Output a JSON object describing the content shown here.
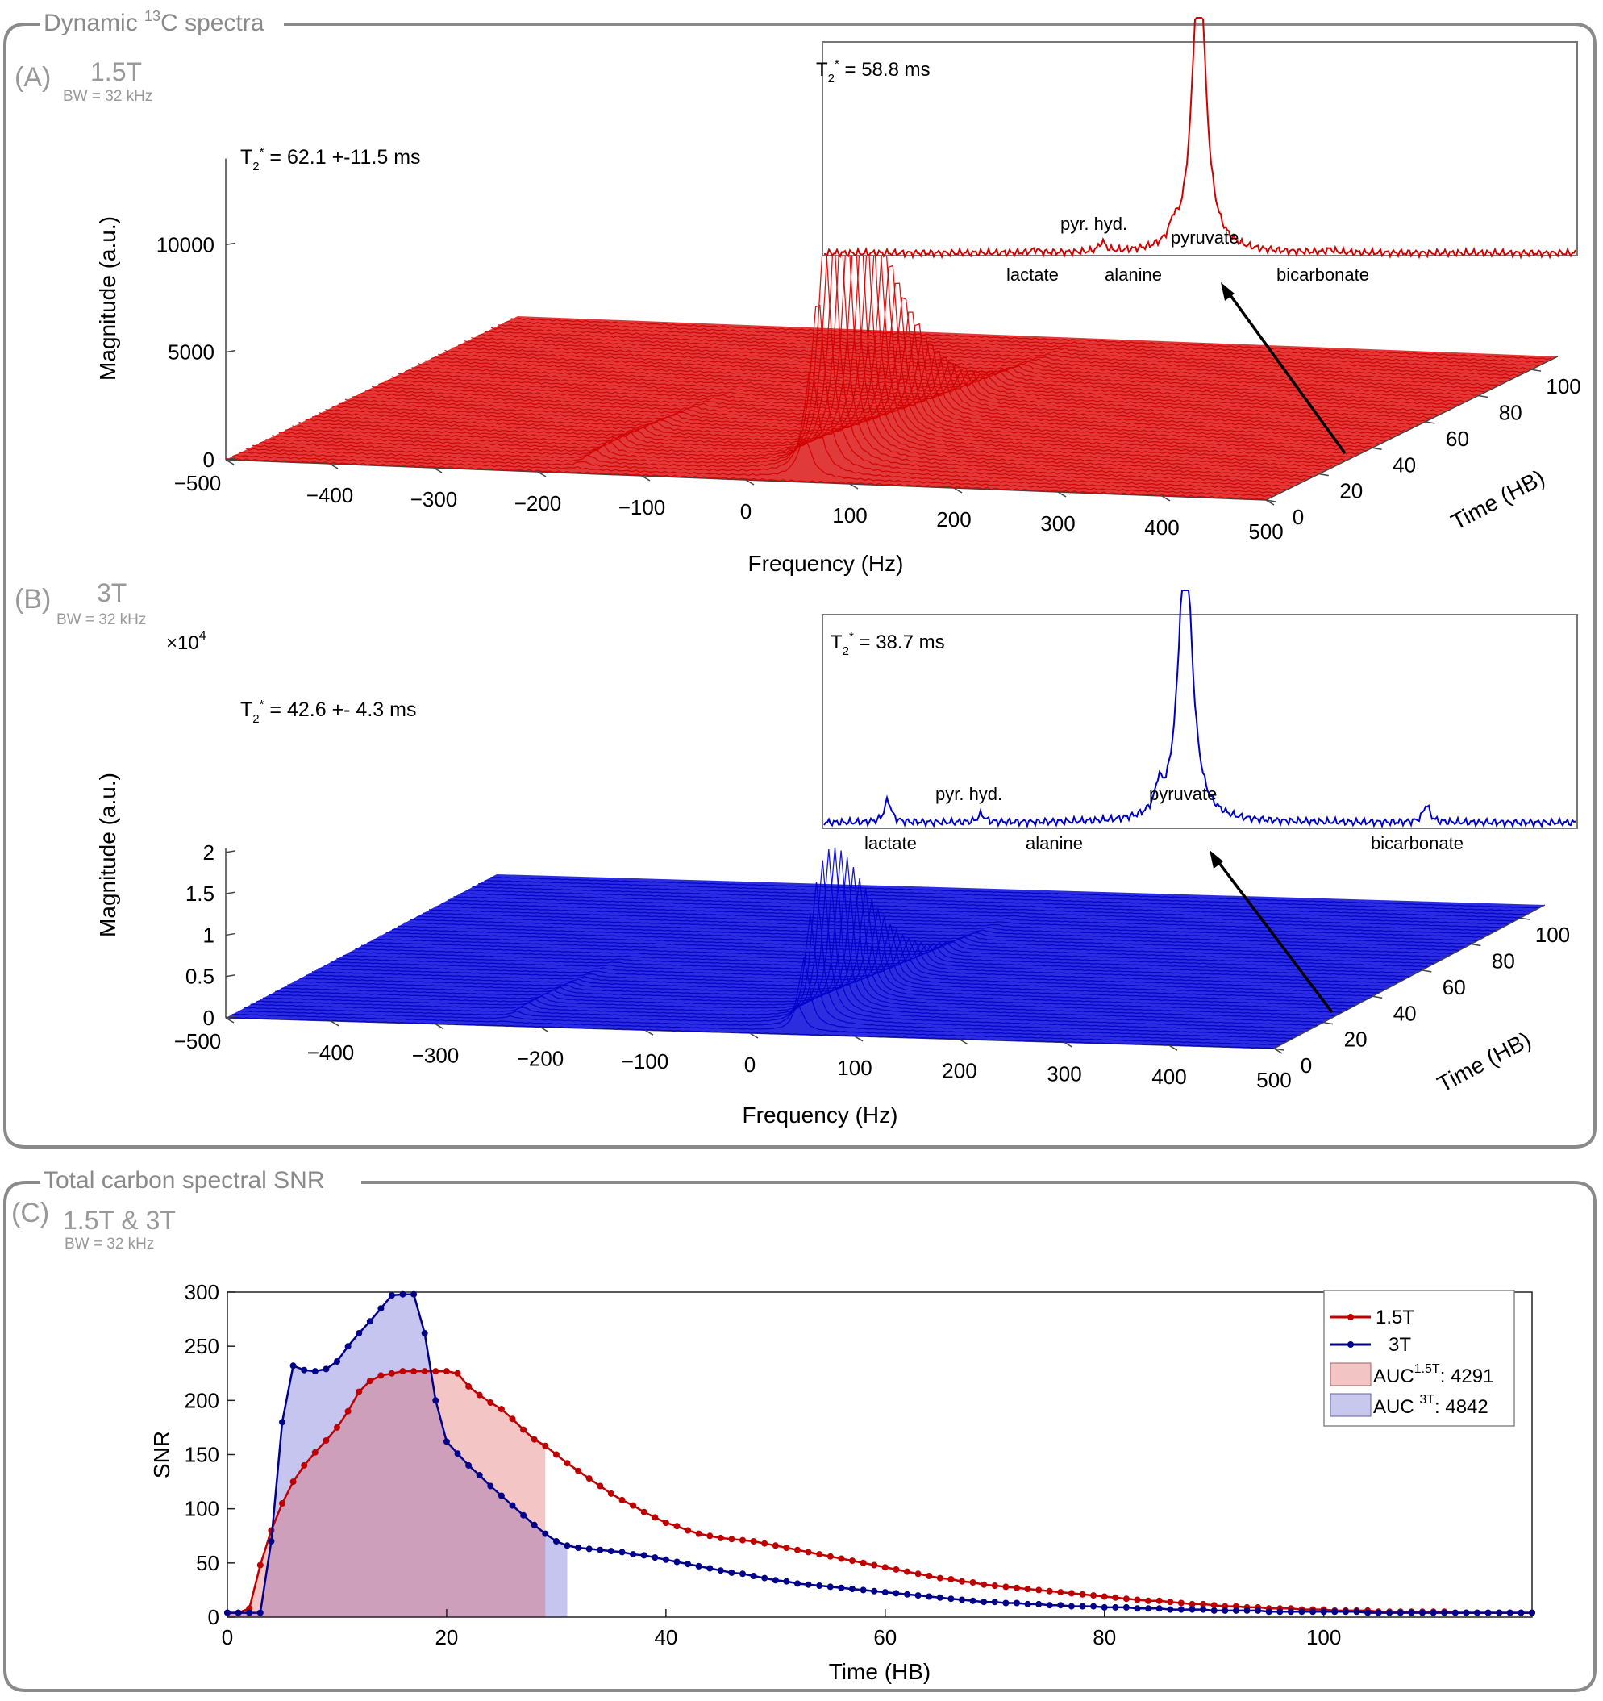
{
  "panel_top": {
    "group_title": "Dynamic ",
    "group_title_sup": "13",
    "group_title_rest": "C spectra"
  },
  "panel_a": {
    "letter": "(A)",
    "field": "1.5T",
    "bw": "BW = 32 kHz",
    "t2_label": "T",
    "t2_sub": "2",
    "t2_sup": "*",
    "t2_value": " = 62.1 +-11.5 ms",
    "inset_t2_value": " = 58.8 ms",
    "color": "#d40000"
  },
  "panel_b": {
    "letter": "(B)",
    "field": "3T",
    "bw": "BW = 32 kHz",
    "multiplier": "×10",
    "multiplier_exp": "4",
    "t2_label": "T",
    "t2_sub": "2",
    "t2_sup": "*",
    "t2_value": " = 42.6 +- 4.3 ms",
    "inset_t2_value": " = 38.7 ms",
    "color": "#0000cc"
  },
  "panel_c": {
    "group_title": "Total carbon spectral SNR",
    "letter": "(C)",
    "field": "1.5T & 3T",
    "bw": "BW = 32 kHz",
    "legend": {
      "s1": "1.5T",
      "s2": "3T",
      "auc1_a": "AUC",
      "auc1_sup": "1.5T",
      "auc1_b": ": 4291",
      "auc2_a": "AUC ",
      "auc2_sup": "3T",
      "auc2_b": ": 4842"
    }
  },
  "inset_labels": {
    "lactate": "lactate",
    "pyr_hyd": "pyr. hyd.",
    "alanine": "alanine",
    "pyruvate": "pyruvate",
    "bicarbonate": "bicarbonate"
  },
  "axes_3d": {
    "xlabel": "Frequency (Hz)",
    "ylabel": "Magnitude (a.u.)",
    "tlabel": "Time (HB)",
    "freq_ticks": [
      "−500",
      "−400",
      "−300",
      "−200",
      "−100",
      "0",
      "100",
      "200",
      "300",
      "400",
      "500"
    ],
    "time_ticks": [
      "0",
      "20",
      "40",
      "60",
      "80",
      "100"
    ],
    "mag_ticks_a": [
      "0",
      "5000",
      "10000"
    ],
    "mag_ticks_b": [
      "0",
      "0.5",
      "1",
      "1.5",
      "2"
    ]
  },
  "chart_data": [
    {
      "type": "area",
      "id": "spectra_1.5T",
      "title": "",
      "xlabel": "Frequency (Hz)",
      "ylabel": "Magnitude (a.u.)",
      "zlabel": "Time (HB)",
      "xlim": [
        -500,
        500
      ],
      "ylim": [
        0,
        14000
      ],
      "zlim": [
        0,
        110
      ],
      "y_ticks": [
        0,
        5000,
        10000
      ],
      "peak_frequency_hz": 50,
      "peak_magnitude_max": 13800,
      "annotation": "T2* = 62.1 +-11.5 ms",
      "inset_annotation": "T2* = 58.8 ms",
      "inset_labels": [
        "lactate",
        "pyr. hyd.",
        "alanine",
        "pyruvate",
        "bicarbonate"
      ]
    },
    {
      "type": "area",
      "id": "spectra_3T",
      "title": "",
      "xlabel": "Frequency (Hz)",
      "ylabel": "Magnitude (a.u.)",
      "zlabel": "Time (HB)",
      "xlim": [
        -500,
        500
      ],
      "ylim": [
        0,
        20500
      ],
      "zlim": [
        0,
        110
      ],
      "y_ticks": [
        0,
        0.5,
        1,
        1.5,
        2
      ],
      "y_multiplier": "×10^4",
      "peak_frequency_hz": 40,
      "peak_magnitude_max": 20000,
      "annotation": "T2* = 42.6 +- 4.3 ms",
      "inset_annotation": "T2* = 38.7 ms",
      "inset_labels": [
        "lactate",
        "pyr. hyd.",
        "alanine",
        "pyruvate",
        "bicarbonate"
      ]
    },
    {
      "type": "line",
      "id": "snr",
      "title": "",
      "xlabel": "Time (HB)",
      "ylabel": "SNR",
      "xlim": [
        0,
        119
      ],
      "ylim": [
        0,
        300
      ],
      "x_ticks": [
        0,
        20,
        40,
        60,
        80,
        100
      ],
      "y_ticks": [
        0,
        50,
        100,
        150,
        200,
        250,
        300
      ],
      "legend_position": "top-right",
      "series": [
        {
          "name": "1.5T",
          "color": "#c00000",
          "auc": 4291,
          "auc_end": 29,
          "points": [
            [
              0,
              4
            ],
            [
              1,
              4
            ],
            [
              2,
              8
            ],
            [
              3,
              48
            ],
            [
              4,
              80
            ],
            [
              5,
              105
            ],
            [
              6,
              125
            ],
            [
              7,
              140
            ],
            [
              8,
              152
            ],
            [
              9,
              163
            ],
            [
              10,
              175
            ],
            [
              11,
              190
            ],
            [
              12,
              208
            ],
            [
              13,
              218
            ],
            [
              14,
              223
            ],
            [
              15,
              225
            ],
            [
              16,
              227
            ],
            [
              17,
              227
            ],
            [
              18,
              227
            ],
            [
              19,
              227
            ],
            [
              20,
              227
            ],
            [
              21,
              225
            ],
            [
              22,
              213
            ],
            [
              23,
              205
            ],
            [
              24,
              198
            ],
            [
              25,
              192
            ],
            [
              26,
              183
            ],
            [
              27,
              173
            ],
            [
              28,
              164
            ],
            [
              29,
              158
            ],
            [
              30,
              150
            ],
            [
              31,
              142
            ],
            [
              32,
              135
            ],
            [
              33,
              128
            ],
            [
              34,
              121
            ],
            [
              35,
              114
            ],
            [
              36,
              108
            ],
            [
              37,
              103
            ],
            [
              38,
              97
            ],
            [
              39,
              92
            ],
            [
              40,
              87
            ],
            [
              41,
              84
            ],
            [
              42,
              80
            ],
            [
              43,
              77
            ],
            [
              44,
              75
            ],
            [
              45,
              73
            ],
            [
              46,
              72
            ],
            [
              47,
              71
            ],
            [
              48,
              70
            ],
            [
              49,
              68
            ],
            [
              50,
              66
            ],
            [
              51,
              64
            ],
            [
              52,
              62
            ],
            [
              53,
              60
            ],
            [
              54,
              58
            ],
            [
              55,
              56
            ],
            [
              56,
              54
            ],
            [
              57,
              52
            ],
            [
              58,
              50
            ],
            [
              59,
              48
            ],
            [
              60,
              46
            ],
            [
              61,
              44
            ],
            [
              62,
              42
            ],
            [
              63,
              40
            ],
            [
              64,
              38
            ],
            [
              65,
              36
            ],
            [
              66,
              35
            ],
            [
              67,
              33
            ],
            [
              68,
              32
            ],
            [
              69,
              30
            ],
            [
              70,
              29
            ],
            [
              71,
              28
            ],
            [
              72,
              27
            ],
            [
              73,
              26
            ],
            [
              74,
              25
            ],
            [
              75,
              24
            ],
            [
              76,
              23
            ],
            [
              77,
              22
            ],
            [
              78,
              21
            ],
            [
              79,
              20
            ],
            [
              80,
              19
            ],
            [
              81,
              18
            ],
            [
              82,
              17
            ],
            [
              83,
              16
            ],
            [
              84,
              15
            ],
            [
              85,
              15
            ],
            [
              86,
              14
            ],
            [
              87,
              13
            ],
            [
              88,
              12
            ],
            [
              89,
              12
            ],
            [
              90,
              11
            ],
            [
              91,
              10
            ],
            [
              92,
              10
            ],
            [
              93,
              9
            ],
            [
              94,
              9
            ],
            [
              95,
              8
            ],
            [
              96,
              8
            ],
            [
              97,
              8
            ],
            [
              98,
              7
            ],
            [
              99,
              7
            ],
            [
              100,
              7
            ],
            [
              101,
              6
            ],
            [
              102,
              6
            ],
            [
              103,
              6
            ],
            [
              104,
              6
            ],
            [
              105,
              5
            ],
            [
              106,
              5
            ],
            [
              107,
              5
            ],
            [
              108,
              5
            ],
            [
              109,
              5
            ],
            [
              110,
              5
            ],
            [
              111,
              5
            ],
            [
              112,
              4
            ],
            [
              113,
              4
            ],
            [
              114,
              4
            ],
            [
              115,
              4
            ],
            [
              116,
              4
            ],
            [
              117,
              4
            ],
            [
              118,
              4
            ],
            [
              119,
              4
            ]
          ]
        },
        {
          "name": "3T",
          "color": "#00008b",
          "auc": 4842,
          "auc_end": 31,
          "points": [
            [
              0,
              4
            ],
            [
              1,
              4
            ],
            [
              2,
              4
            ],
            [
              3,
              4
            ],
            [
              4,
              70
            ],
            [
              5,
              180
            ],
            [
              6,
              232
            ],
            [
              7,
              228
            ],
            [
              8,
              227
            ],
            [
              9,
              229
            ],
            [
              10,
              236
            ],
            [
              11,
              250
            ],
            [
              12,
              262
            ],
            [
              13,
              273
            ],
            [
              14,
              285
            ],
            [
              15,
              297
            ],
            [
              16,
              298
            ],
            [
              17,
              298
            ],
            [
              18,
              262
            ],
            [
              19,
              200
            ],
            [
              20,
              162
            ],
            [
              21,
              151
            ],
            [
              22,
              140
            ],
            [
              23,
              131
            ],
            [
              24,
              121
            ],
            [
              25,
              112
            ],
            [
              26,
              103
            ],
            [
              27,
              94
            ],
            [
              28,
              85
            ],
            [
              29,
              77
            ],
            [
              30,
              70
            ],
            [
              31,
              66
            ],
            [
              32,
              64
            ],
            [
              33,
              63
            ],
            [
              34,
              62
            ],
            [
              35,
              61
            ],
            [
              36,
              60
            ],
            [
              37,
              58
            ],
            [
              38,
              57
            ],
            [
              39,
              55
            ],
            [
              40,
              53
            ],
            [
              41,
              51
            ],
            [
              42,
              49
            ],
            [
              43,
              47
            ],
            [
              44,
              45
            ],
            [
              45,
              43
            ],
            [
              46,
              41
            ],
            [
              47,
              40
            ],
            [
              48,
              38
            ],
            [
              49,
              36
            ],
            [
              50,
              34
            ],
            [
              51,
              33
            ],
            [
              52,
              31
            ],
            [
              53,
              30
            ],
            [
              54,
              29
            ],
            [
              55,
              28
            ],
            [
              56,
              27
            ],
            [
              57,
              26
            ],
            [
              58,
              25
            ],
            [
              59,
              24
            ],
            [
              60,
              23
            ],
            [
              61,
              22
            ],
            [
              62,
              21
            ],
            [
              63,
              20
            ],
            [
              64,
              19
            ],
            [
              65,
              18
            ],
            [
              66,
              17
            ],
            [
              67,
              16
            ],
            [
              68,
              15
            ],
            [
              69,
              14
            ],
            [
              70,
              14
            ],
            [
              71,
              13
            ],
            [
              72,
              13
            ],
            [
              73,
              12
            ],
            [
              74,
              12
            ],
            [
              75,
              11
            ],
            [
              76,
              11
            ],
            [
              77,
              10
            ],
            [
              78,
              10
            ],
            [
              79,
              10
            ],
            [
              80,
              9
            ],
            [
              81,
              9
            ],
            [
              82,
              9
            ],
            [
              83,
              8
            ],
            [
              84,
              8
            ],
            [
              85,
              8
            ],
            [
              86,
              7
            ],
            [
              87,
              7
            ],
            [
              88,
              7
            ],
            [
              89,
              7
            ],
            [
              90,
              6
            ],
            [
              91,
              6
            ],
            [
              92,
              6
            ],
            [
              93,
              6
            ],
            [
              94,
              6
            ],
            [
              95,
              5
            ],
            [
              96,
              5
            ],
            [
              97,
              5
            ],
            [
              98,
              5
            ],
            [
              99,
              5
            ],
            [
              100,
              5
            ],
            [
              101,
              5
            ],
            [
              102,
              5
            ],
            [
              103,
              5
            ],
            [
              104,
              4
            ],
            [
              105,
              4
            ],
            [
              106,
              4
            ],
            [
              107,
              4
            ],
            [
              108,
              4
            ],
            [
              109,
              4
            ],
            [
              110,
              4
            ],
            [
              111,
              4
            ],
            [
              112,
              4
            ],
            [
              113,
              4
            ],
            [
              114,
              4
            ],
            [
              115,
              4
            ],
            [
              116,
              4
            ],
            [
              117,
              4
            ],
            [
              118,
              4
            ],
            [
              119,
              4
            ]
          ]
        }
      ]
    }
  ]
}
